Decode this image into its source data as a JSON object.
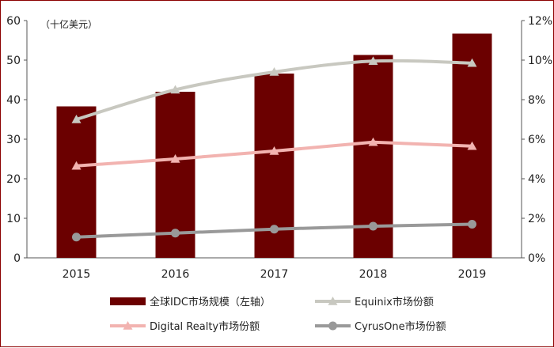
{
  "chart_data": {
    "type": "bar",
    "categories": [
      "2015",
      "2016",
      "2017",
      "2018",
      "2019"
    ],
    "unit_label": "（十亿美元）",
    "ylim_left": [
      0,
      60
    ],
    "yticks_left": [
      0,
      10,
      20,
      30,
      40,
      50,
      60
    ],
    "ylim_right": [
      0,
      12
    ],
    "yticks_right": [
      "0%",
      "2%",
      "4%",
      "6%",
      "8%",
      "10%",
      "12%"
    ],
    "grid": false,
    "legend_position": "bottom",
    "series": [
      {
        "name": "全球IDC市场规模（左轴）",
        "type": "bar",
        "axis": "left",
        "color": "#6b0000",
        "values": [
          38.3,
          42.0,
          46.6,
          51.3,
          56.7
        ]
      },
      {
        "name": "Equinix市场份额",
        "type": "line",
        "axis": "right",
        "color": "#c8c8c0",
        "marker": "triangle",
        "smooth": true,
        "values": [
          7.0,
          8.5,
          9.4,
          9.95,
          9.85
        ]
      },
      {
        "name": "Digital Realty市场份额",
        "type": "line",
        "axis": "right",
        "color": "#f2b3b0",
        "marker": "triangle",
        "smooth": false,
        "values": [
          4.65,
          5.0,
          5.4,
          5.85,
          5.65
        ]
      },
      {
        "name": "CyrusOne市场份额",
        "type": "line",
        "axis": "right",
        "color": "#999999",
        "marker": "circle",
        "smooth": false,
        "values": [
          1.05,
          1.25,
          1.45,
          1.6,
          1.7
        ]
      }
    ]
  }
}
